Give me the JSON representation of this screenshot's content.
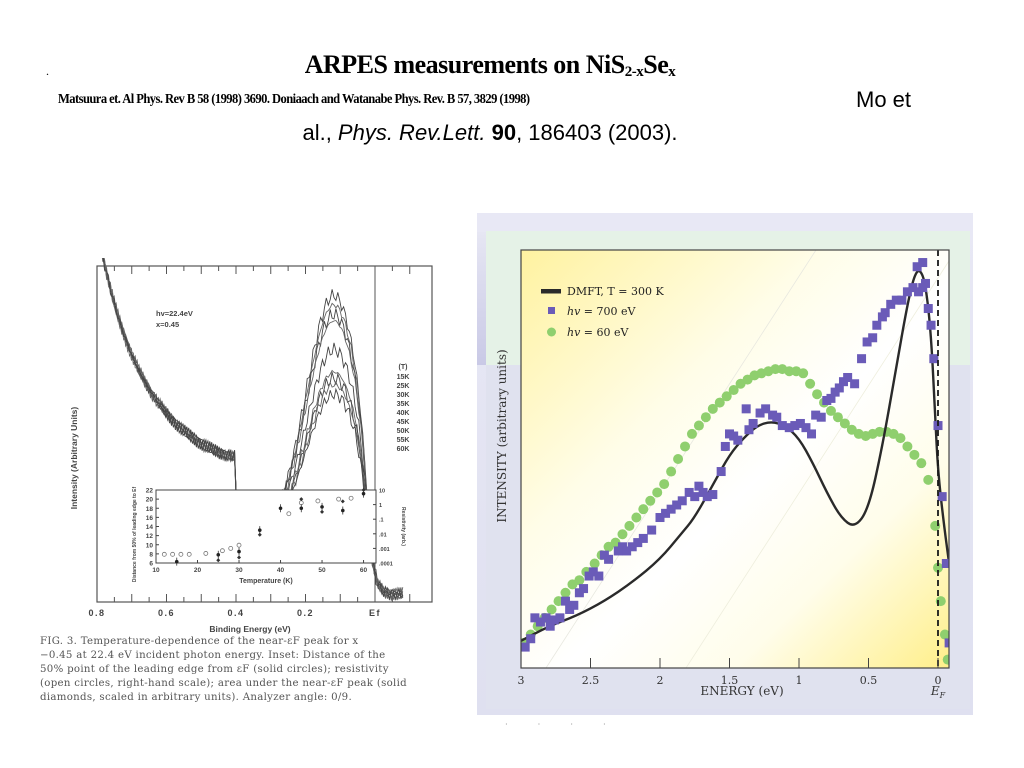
{
  "slide": {
    "bullet_mark": ".",
    "title_main": "ARPES measurements on NiS",
    "title_sub1": "2-x",
    "title_mid": "Se",
    "title_sub2": "x",
    "citation_line1_small": "Matsuura et. Al Phys. Rev B 58 (1998) 3690. Doniaach and Watanabe Phys. Rev. B 57, 3829 (1998)",
    "citation_line1_big": "Mo et",
    "citation_line2_prefix": "al., ",
    "citation_line2_journal": "Phys. Rev.Lett.",
    "citation_line2_volume": "90",
    "citation_line2_suffix": ", 186403  (2003)."
  },
  "left_figure": {
    "caption_lines": [
      "FIG. 3. Temperature-dependence of the near-εF peak for x",
      "−0.45 at 22.4 eV incident photon energy. Inset: Distance of the",
      "50% point of the leading edge from εF (solid circles); resistivity",
      "(open circles, right-hand scale); area under the near-εF peak (solid",
      "diamonds, scaled in arbitrary units). Analyzer angle: 0/9."
    ]
  },
  "chart_data": [
    {
      "type": "line",
      "title": "",
      "xlabel": "Binding Energy (eV)",
      "ylabel": "Intensity (Arbitrary Units)",
      "x_ticks": [
        "0.8",
        "0.6",
        "0.4",
        "0.2",
        "Ef"
      ],
      "xlim": [
        0.8,
        -0.08
      ],
      "annotations": [
        "hv=22.4eV",
        "x=0.45"
      ],
      "legend_title": "(T)",
      "legend": [
        "15K",
        "25K",
        "30K",
        "35K",
        "40K",
        "45K",
        "50K",
        "55K",
        "60K"
      ],
      "legend_position": "right",
      "series": [
        {
          "name": "15K",
          "peak": 0.72
        },
        {
          "name": "25K",
          "peak": 0.69
        },
        {
          "name": "30K",
          "peak": 0.66
        },
        {
          "name": "35K",
          "peak": 0.64
        },
        {
          "name": "40K",
          "peak": 0.55
        },
        {
          "name": "45K",
          "peak": 0.48
        },
        {
          "name": "50K",
          "peak": 0.46
        },
        {
          "name": "55K",
          "peak": 0.44
        },
        {
          "name": "60K",
          "peak": 0.41
        }
      ],
      "inset": {
        "type": "scatter",
        "xlabel": "Temperature (K)",
        "ylabel": "Distance from 50% of leading edge to Ef",
        "y2label": "Resistivity (arb.)",
        "x_ticks": [
          "10",
          "20",
          "30",
          "40",
          "50",
          "60"
        ],
        "y_ticks": [
          "6",
          "8",
          "10",
          "12",
          "14",
          "16",
          "18",
          "20",
          "22"
        ],
        "y2_ticks": [
          "10",
          "1",
          ".1",
          ".01",
          ".001",
          ".0001"
        ],
        "xlim": [
          10,
          63
        ],
        "ylim": [
          6,
          22
        ],
        "solid_circles": [
          [
            15,
            6.3
          ],
          [
            25,
            7.8
          ],
          [
            30,
            8.5
          ],
          [
            35,
            13.2
          ],
          [
            40,
            18
          ],
          [
            45,
            18
          ],
          [
            50,
            18.3
          ],
          [
            55,
            17.5
          ],
          [
            60,
            21.2
          ]
        ],
        "open_circles": [
          [
            12,
            7.9
          ],
          [
            14,
            7.9
          ],
          [
            16,
            7.9
          ],
          [
            18,
            7.9
          ],
          [
            22,
            8.1
          ],
          [
            26,
            8.7
          ],
          [
            28,
            9.2
          ],
          [
            30,
            9.9
          ],
          [
            42,
            16.8
          ],
          [
            45,
            19.2
          ],
          [
            49,
            19.6
          ],
          [
            54,
            20
          ],
          [
            57,
            20.2
          ]
        ],
        "solid_diamonds": [
          [
            25,
            6.6
          ],
          [
            30,
            7.2
          ],
          [
            35,
            12.2
          ],
          [
            45,
            20
          ],
          [
            50,
            17.2
          ],
          [
            55,
            19.5
          ],
          [
            60,
            22
          ]
        ]
      }
    },
    {
      "type": "scatter",
      "title": "",
      "xlabel": "ENERGY (eV)",
      "ylabel": "INTENSITY (arbitrary units)",
      "x_ticks": [
        "3",
        "2.5",
        "2",
        "1.5",
        "1",
        "0.5",
        "0"
      ],
      "x_tick_values": [
        3,
        2.5,
        2,
        1.5,
        1,
        0.5,
        0
      ],
      "x_extra_label": "EF",
      "xlim": [
        3,
        -0.08
      ],
      "ylim": [
        0,
        1
      ],
      "grid": false,
      "legend_position": "top-left",
      "fermi_level": 0,
      "colors": {
        "dmft": "#2a2a2a",
        "hv700": "#6a5bb8",
        "hv60": "#8fcf6e"
      },
      "series": [
        {
          "name": "DMFT, T = 300 K",
          "kind": "line",
          "points": [
            [
              3.0,
              0.065
            ],
            [
              2.8,
              0.1
            ],
            [
              2.6,
              0.125
            ],
            [
              2.4,
              0.16
            ],
            [
              2.2,
              0.205
            ],
            [
              2.0,
              0.26
            ],
            [
              1.85,
              0.32
            ],
            [
              1.75,
              0.36
            ],
            [
              1.6,
              0.45
            ],
            [
              1.5,
              0.51
            ],
            [
              1.4,
              0.55
            ],
            [
              1.3,
              0.58
            ],
            [
              1.2,
              0.59
            ],
            [
              1.1,
              0.58
            ],
            [
              1.0,
              0.55
            ],
            [
              0.9,
              0.49
            ],
            [
              0.8,
              0.42
            ],
            [
              0.7,
              0.36
            ],
            [
              0.6,
              0.335
            ],
            [
              0.5,
              0.38
            ],
            [
              0.4,
              0.53
            ],
            [
              0.3,
              0.72
            ],
            [
              0.22,
              0.87
            ],
            [
              0.17,
              0.94
            ],
            [
              0.13,
              0.955
            ],
            [
              0.09,
              0.92
            ],
            [
              0.05,
              0.8
            ],
            [
              0.02,
              0.6
            ],
            [
              0.0,
              0.47
            ],
            [
              -0.04,
              0.35
            ],
            [
              -0.08,
              0.25
            ]
          ]
        },
        {
          "name": "hv = 700 eV",
          "kind": "square",
          "points": [
            [
              2.97,
              0.05
            ],
            [
              2.93,
              0.07
            ],
            [
              2.9,
              0.12
            ],
            [
              2.86,
              0.11
            ],
            [
              2.82,
              0.12
            ],
            [
              2.79,
              0.1
            ],
            [
              2.76,
              0.115
            ],
            [
              2.72,
              0.12
            ],
            [
              2.68,
              0.16
            ],
            [
              2.65,
              0.14
            ],
            [
              2.62,
              0.15
            ],
            [
              2.58,
              0.18
            ],
            [
              2.55,
              0.19
            ],
            [
              2.51,
              0.22
            ],
            [
              2.48,
              0.23
            ],
            [
              2.44,
              0.22
            ],
            [
              2.4,
              0.27
            ],
            [
              2.37,
              0.26
            ],
            [
              2.3,
              0.28
            ],
            [
              2.27,
              0.29
            ],
            [
              2.24,
              0.28
            ],
            [
              2.2,
              0.29
            ],
            [
              2.16,
              0.3
            ],
            [
              2.12,
              0.31
            ],
            [
              2.06,
              0.33
            ],
            [
              2.0,
              0.36
            ],
            [
              1.96,
              0.37
            ],
            [
              1.92,
              0.38
            ],
            [
              1.88,
              0.39
            ],
            [
              1.84,
              0.4
            ],
            [
              1.79,
              0.42
            ],
            [
              1.75,
              0.41
            ],
            [
              1.72,
              0.435
            ],
            [
              1.69,
              0.42
            ],
            [
              1.66,
              0.41
            ],
            [
              1.62,
              0.415
            ],
            [
              1.56,
              0.47
            ],
            [
              1.53,
              0.53
            ],
            [
              1.5,
              0.56
            ],
            [
              1.47,
              0.555
            ],
            [
              1.44,
              0.545
            ],
            [
              1.38,
              0.62
            ],
            [
              1.36,
              0.57
            ],
            [
              1.33,
              0.585
            ],
            [
              1.28,
              0.61
            ],
            [
              1.24,
              0.62
            ],
            [
              1.19,
              0.605
            ],
            [
              1.16,
              0.6
            ],
            [
              1.12,
              0.58
            ],
            [
              1.07,
              0.575
            ],
            [
              1.03,
              0.58
            ],
            [
              0.99,
              0.585
            ],
            [
              0.95,
              0.575
            ],
            [
              0.91,
              0.56
            ],
            [
              0.88,
              0.605
            ],
            [
              0.84,
              0.6
            ],
            [
              0.8,
              0.64
            ],
            [
              0.77,
              0.645
            ],
            [
              0.74,
              0.66
            ],
            [
              0.71,
              0.67
            ],
            [
              0.68,
              0.685
            ],
            [
              0.65,
              0.695
            ],
            [
              0.6,
              0.68
            ],
            [
              0.55,
              0.74
            ],
            [
              0.51,
              0.78
            ],
            [
              0.47,
              0.79
            ],
            [
              0.44,
              0.82
            ],
            [
              0.4,
              0.84
            ],
            [
              0.38,
              0.85
            ],
            [
              0.34,
              0.87
            ],
            [
              0.3,
              0.88
            ],
            [
              0.26,
              0.88
            ],
            [
              0.22,
              0.9
            ],
            [
              0.18,
              0.91
            ],
            [
              0.14,
              0.9
            ],
            [
              0.11,
              0.91
            ],
            [
              0.09,
              0.92
            ],
            [
              0.15,
              0.96
            ],
            [
              0.11,
              0.97
            ],
            [
              0.07,
              0.86
            ],
            [
              0.05,
              0.82
            ],
            [
              0.03,
              0.74
            ],
            [
              0.0,
              0.58
            ],
            [
              -0.03,
              0.41
            ],
            [
              -0.06,
              0.25
            ],
            [
              -0.08,
              0.06
            ]
          ]
        },
        {
          "name": "hv = 60 eV",
          "kind": "circle",
          "points": [
            [
              2.98,
              0.06
            ],
            [
              2.93,
              0.08
            ],
            [
              2.88,
              0.1
            ],
            [
              2.83,
              0.12
            ],
            [
              2.78,
              0.14
            ],
            [
              2.73,
              0.16
            ],
            [
              2.68,
              0.18
            ],
            [
              2.63,
              0.2
            ],
            [
              2.58,
              0.21
            ],
            [
              2.53,
              0.23
            ],
            [
              2.47,
              0.25
            ],
            [
              2.42,
              0.27
            ],
            [
              2.37,
              0.29
            ],
            [
              2.32,
              0.3
            ],
            [
              2.27,
              0.32
            ],
            [
              2.22,
              0.34
            ],
            [
              2.17,
              0.36
            ],
            [
              2.12,
              0.38
            ],
            [
              2.07,
              0.4
            ],
            [
              2.02,
              0.42
            ],
            [
              1.97,
              0.44
            ],
            [
              1.92,
              0.47
            ],
            [
              1.87,
              0.5
            ],
            [
              1.82,
              0.53
            ],
            [
              1.77,
              0.56
            ],
            [
              1.72,
              0.58
            ],
            [
              1.67,
              0.6
            ],
            [
              1.62,
              0.62
            ],
            [
              1.57,
              0.635
            ],
            [
              1.52,
              0.65
            ],
            [
              1.47,
              0.665
            ],
            [
              1.42,
              0.68
            ],
            [
              1.37,
              0.69
            ],
            [
              1.32,
              0.7
            ],
            [
              1.27,
              0.705
            ],
            [
              1.22,
              0.71
            ],
            [
              1.17,
              0.715
            ],
            [
              1.12,
              0.715
            ],
            [
              1.07,
              0.71
            ],
            [
              1.02,
              0.71
            ],
            [
              0.97,
              0.705
            ],
            [
              0.92,
              0.68
            ],
            [
              0.87,
              0.655
            ],
            [
              0.82,
              0.635
            ],
            [
              0.77,
              0.615
            ],
            [
              0.72,
              0.6
            ],
            [
              0.67,
              0.585
            ],
            [
              0.62,
              0.57
            ],
            [
              0.57,
              0.56
            ],
            [
              0.52,
              0.555
            ],
            [
              0.47,
              0.56
            ],
            [
              0.42,
              0.565
            ],
            [
              0.37,
              0.565
            ],
            [
              0.32,
              0.56
            ],
            [
              0.27,
              0.55
            ],
            [
              0.22,
              0.53
            ],
            [
              0.17,
              0.51
            ],
            [
              0.12,
              0.49
            ],
            [
              0.07,
              0.45
            ],
            [
              0.02,
              0.34
            ],
            [
              0.0,
              0.24
            ],
            [
              -0.02,
              0.16
            ],
            [
              -0.05,
              0.08
            ],
            [
              -0.07,
              0.02
            ]
          ]
        }
      ]
    }
  ]
}
